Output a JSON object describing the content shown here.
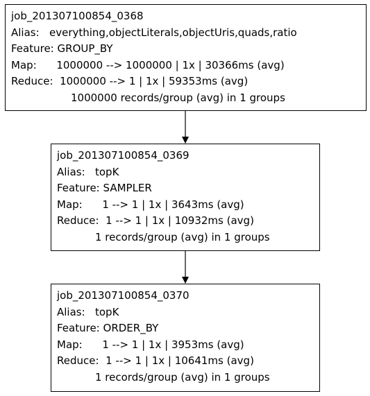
{
  "nodes": [
    {
      "job": "job_201307100854_0368",
      "alias_label": "Alias:",
      "alias": "everything,objectLiterals,objectUris,quads,ratio",
      "feature_label": "Feature:",
      "feature": "GROUP_BY",
      "map_label": "Map:",
      "map": "1000000 --> 1000000 | 1x | 30366ms (avg)",
      "reduce_label": "Reduce:",
      "reduce": "1000000 --> 1 | 1x | 59353ms (avg)",
      "groups": "1000000 records/group (avg) in 1 groups"
    },
    {
      "job": "job_201307100854_0369",
      "alias_label": "Alias:",
      "alias": "topK",
      "feature_label": "Feature:",
      "feature": "SAMPLER",
      "map_label": "Map:",
      "map": "1 --> 1 | 1x | 3643ms (avg)",
      "reduce_label": "Reduce:",
      "reduce": "1 --> 1 | 1x | 10932ms (avg)",
      "groups": "1 records/group (avg) in 1 groups"
    },
    {
      "job": "job_201307100854_0370",
      "alias_label": "Alias:",
      "alias": "topK",
      "feature_label": "Feature:",
      "feature": "ORDER_BY",
      "map_label": "Map:",
      "map": "1 --> 1 | 1x | 3953ms (avg)",
      "reduce_label": "Reduce:",
      "reduce": "1 --> 1 | 1x | 10641ms (avg)",
      "groups": "1 records/group (avg) in 1 groups"
    }
  ]
}
